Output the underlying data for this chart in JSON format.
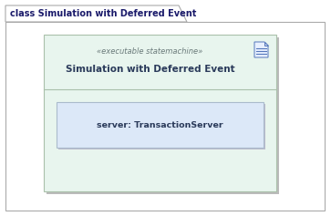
{
  "bg_color": "#ffffff",
  "outer_border_color": "#aaaaaa",
  "outer_fill_color": "#ffffff",
  "tab_label": "class Simulation with Deferred Event",
  "tab_font_size": 7.0,
  "tab_font_weight": "bold",
  "tab_text_color": "#1a1a6a",
  "inner_fill_color": "#e8f5ee",
  "inner_border_color": "#aac0aa",
  "inner_shadow_color": "#bbbbbb",
  "stereotype_text": "«executable statemachine»",
  "stereotype_font_size": 6.0,
  "stereotype_color": "#6a7a7a",
  "class_name": "Simulation with Deferred Event",
  "class_name_font_size": 7.5,
  "class_name_color": "#2a3a5a",
  "class_name_font_weight": "bold",
  "attr_box_fill_color": "#dce8f8",
  "attr_box_border_color": "#aabbcc",
  "attr_text": "server: TransactionServer",
  "attr_font_size": 6.8,
  "attr_text_color": "#2a3a5a",
  "attr_font_weight": "bold",
  "icon_color": "#5577bb",
  "icon_fill": "#ddeeff",
  "icon_bg": "#e8f5ee"
}
